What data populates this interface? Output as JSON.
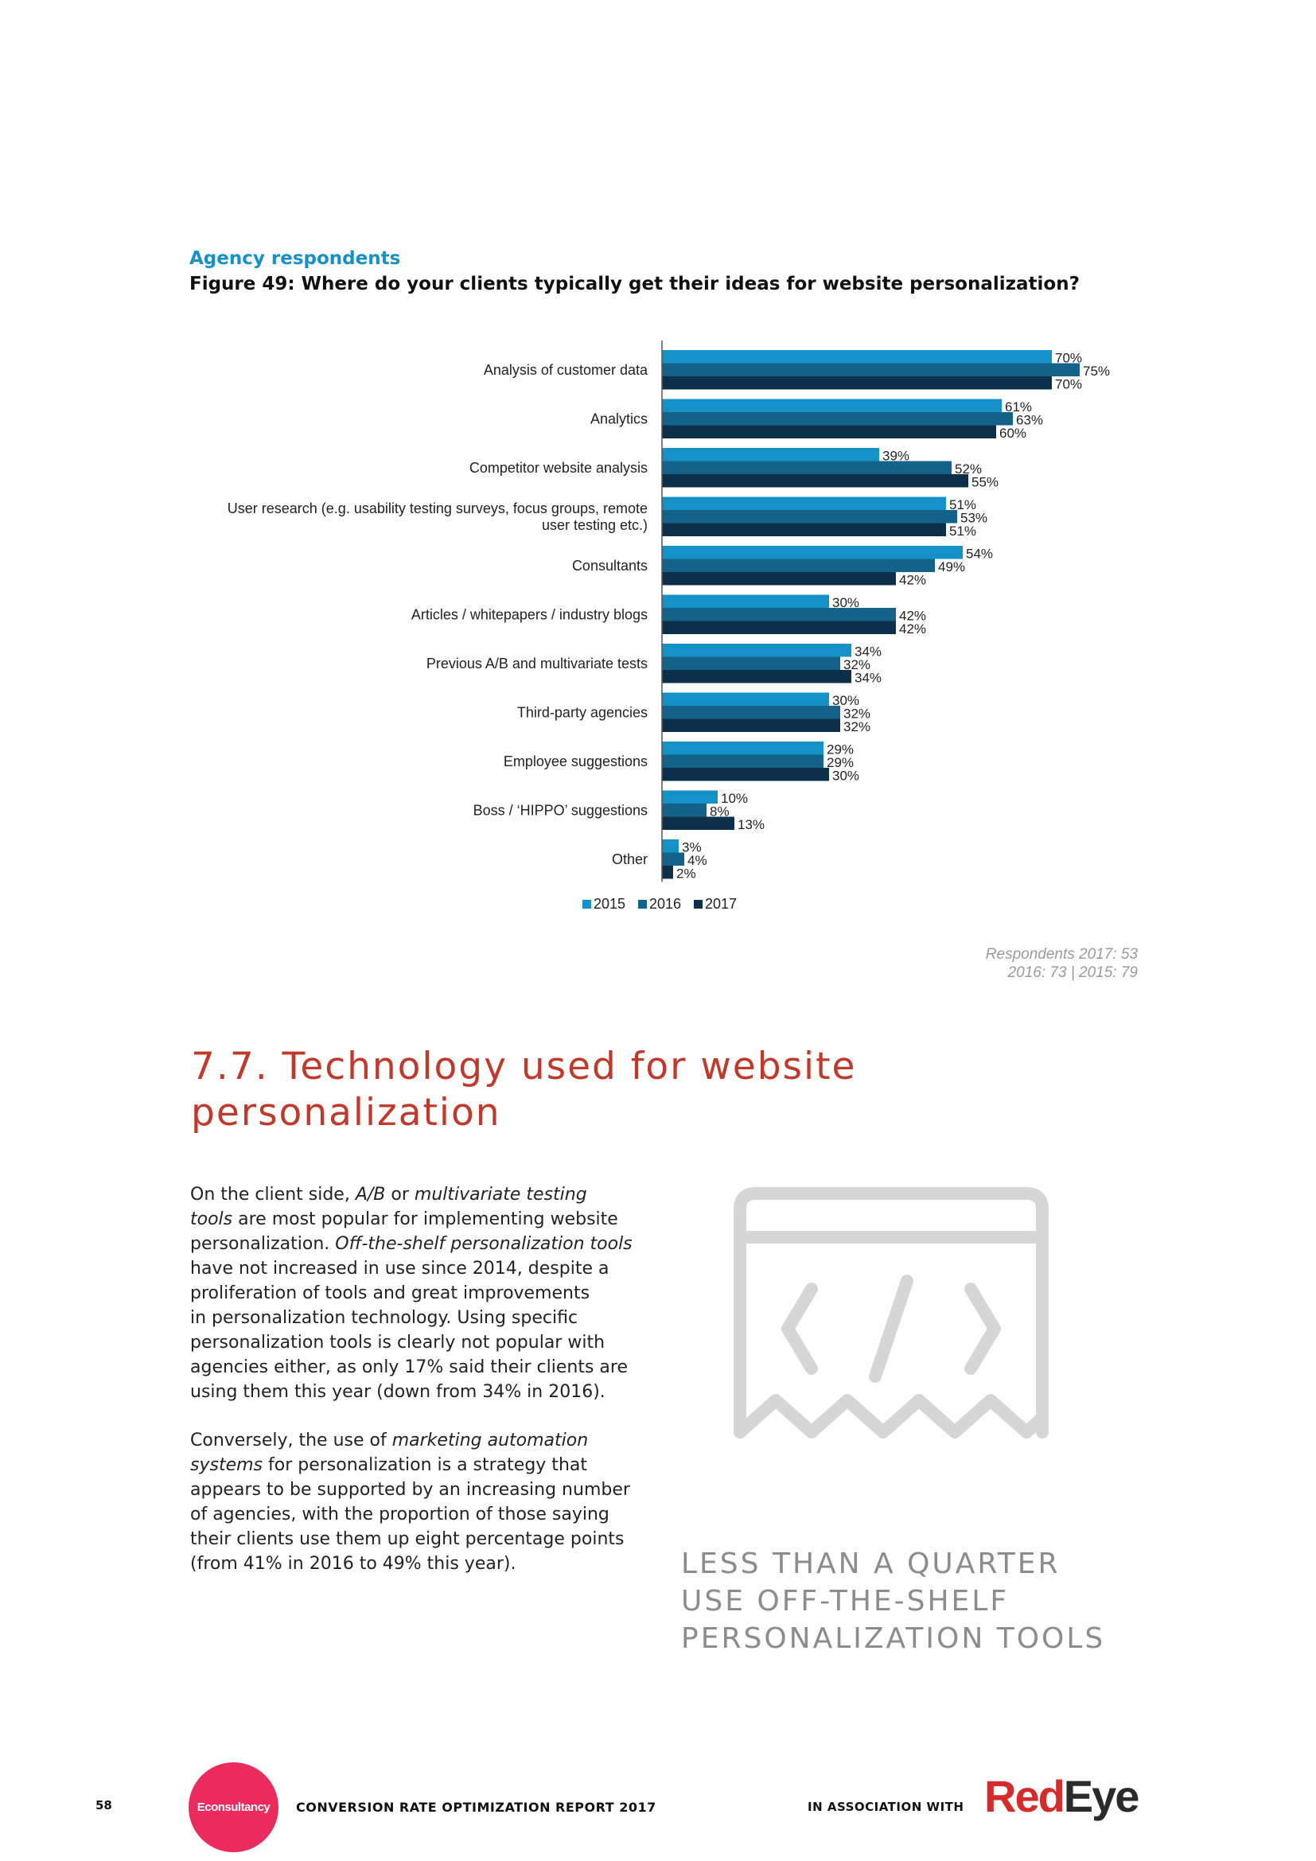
{
  "header": {
    "agency_label": "Agency respondents",
    "figure_title": "Figure 49: Where do your clients typically get their ideas for website personalization?"
  },
  "chart_data": {
    "type": "bar",
    "orientation": "horizontal",
    "categories": [
      [
        "Analysis of customer data"
      ],
      [
        "Analytics"
      ],
      [
        "Competitor website analysis"
      ],
      [
        "User research (e.g. usability testing surveys, focus groups, remote",
        "user testing etc.)"
      ],
      [
        "Consultants"
      ],
      [
        "Articles / whitepapers / industry blogs"
      ],
      [
        "Previous A/B and multivariate tests"
      ],
      [
        "Third-party agencies"
      ],
      [
        "Employee suggestions"
      ],
      [
        "Boss / ‘HIPPO’ suggestions"
      ],
      [
        "Other"
      ]
    ],
    "series": [
      {
        "name": "2015",
        "color": "#1591c7",
        "values": [
          70,
          61,
          39,
          51,
          54,
          30,
          34,
          30,
          29,
          10,
          3
        ]
      },
      {
        "name": "2016",
        "color": "#13628a",
        "values": [
          75,
          63,
          52,
          53,
          49,
          42,
          32,
          32,
          29,
          8,
          4
        ]
      },
      {
        "name": "2017",
        "color": "#0c3049",
        "values": [
          70,
          60,
          55,
          51,
          42,
          42,
          34,
          32,
          30,
          13,
          2
        ]
      }
    ],
    "value_suffix": "%",
    "legend_position": "bottom",
    "grid": false
  },
  "respondents": {
    "line1": "Respondents 2017: 53",
    "line2": "2016: 73 | 2015: 79"
  },
  "section": {
    "title_line1": "7.7.  Technology used for website",
    "title_line2": "personalization"
  },
  "body": {
    "p1": [
      [
        {
          "t": "On the client side, "
        },
        {
          "t": "A/B",
          "i": true
        },
        {
          "t": " or "
        },
        {
          "t": "multivariate testing",
          "i": true
        }
      ],
      [
        {
          "t": "tools",
          "i": true
        },
        {
          "t": " are most popular for implementing website"
        }
      ],
      [
        {
          "t": "personalization. "
        },
        {
          "t": "Off-the-shelf personalization tools",
          "i": true
        }
      ],
      [
        {
          "t": "have not increased in use since 2014, despite a"
        }
      ],
      [
        {
          "t": "proliferation of tools and great improvements"
        }
      ],
      [
        {
          "t": "in personalization technology. Using specific"
        }
      ],
      [
        {
          "t": "personalization tools is clearly not popular with"
        }
      ],
      [
        {
          "t": "agencies either, as only 17% said their clients are"
        }
      ],
      [
        {
          "t": "using them this year (down from 34% in 2016)."
        }
      ]
    ],
    "p2": [
      [
        {
          "t": "Conversely, the use of "
        },
        {
          "t": "marketing automation",
          "i": true
        }
      ],
      [
        {
          "t": "systems",
          "i": true
        },
        {
          "t": " for personalization is a strategy that"
        }
      ],
      [
        {
          "t": "appears to be supported by an increasing number"
        }
      ],
      [
        {
          "t": "of agencies, with the proportion of those saying"
        }
      ],
      [
        {
          "t": "their clients use them up eight percentage points"
        }
      ],
      [
        {
          "t": "(from 41% in 2016 to 49% this year)."
        }
      ]
    ]
  },
  "illustration": {
    "icon": "code-window-icon",
    "color": "#d6d6d6"
  },
  "quote": {
    "line1": "LESS THAN A QUARTER",
    "line2": "USE OFF-THE-SHELF",
    "line3": "PERSONALIZATION TOOLS"
  },
  "footer": {
    "page_number": "58",
    "logo_text": "Econsultancy",
    "report_title": "CONVERSION RATE OPTIMIZATION REPORT 2017",
    "association": "IN ASSOCIATION WITH",
    "partner_red": "Red",
    "partner_dark": "Eye"
  }
}
